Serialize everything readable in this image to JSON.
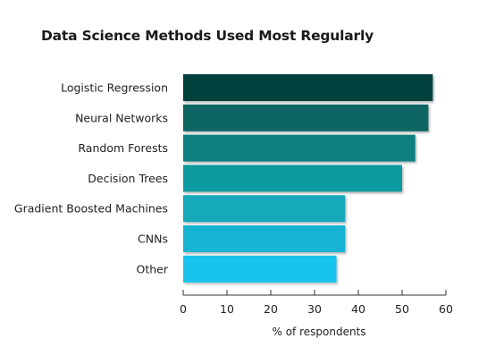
{
  "chart_data": {
    "type": "bar",
    "orientation": "horizontal",
    "title": "Data Science Methods Used Most Regularly",
    "xlabel": "% of respondents",
    "ylabel": "",
    "xlim": [
      0,
      60
    ],
    "xticks": [
      "0",
      "10",
      "20",
      "30",
      "40",
      "50",
      "60"
    ],
    "categories": [
      "Logistic Regression",
      "Neural Networks",
      "Random Forests",
      "Decision Trees",
      "Gradient Boosted Machines",
      "CNNs",
      "Other"
    ],
    "values": [
      57,
      56,
      53,
      50,
      37,
      37,
      35
    ],
    "colors": [
      "#053f3d",
      "#0a6664",
      "#0b807f",
      "#0c9aa0",
      "#12a9bc",
      "#14b3d2",
      "#19c4ee"
    ],
    "grid": false,
    "legend": "none"
  }
}
